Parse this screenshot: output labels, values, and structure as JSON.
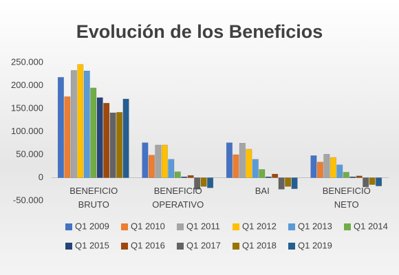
{
  "chart_data": {
    "type": "bar",
    "title": "Evolución de los Beneficios",
    "categories": [
      "BENEFICIO BRUTO",
      "BENEFICIO OPERATIVO",
      "BAI",
      "BENEFICIO NETO"
    ],
    "series": [
      {
        "name": "Q1 2009",
        "color": "#4472c4",
        "values": [
          218000,
          76000,
          76000,
          48000
        ]
      },
      {
        "name": "Q1 2010",
        "color": "#ed7d31",
        "values": [
          176000,
          49000,
          50000,
          34000
        ]
      },
      {
        "name": "Q1 2011",
        "color": "#a5a5a5",
        "values": [
          233000,
          71000,
          75000,
          51000
        ]
      },
      {
        "name": "Q1 2012",
        "color": "#ffc000",
        "values": [
          246000,
          71000,
          62000,
          44000
        ]
      },
      {
        "name": "Q1 2013",
        "color": "#5b9bd5",
        "values": [
          232000,
          40000,
          40000,
          28000
        ]
      },
      {
        "name": "Q1 2014",
        "color": "#70ad47",
        "values": [
          195000,
          13000,
          18000,
          12000
        ]
      },
      {
        "name": "Q1 2015",
        "color": "#264478",
        "values": [
          174000,
          2000,
          2000,
          2000
        ]
      },
      {
        "name": "Q1 2016",
        "color": "#9e480e",
        "values": [
          162000,
          5000,
          8000,
          4000
        ]
      },
      {
        "name": "Q1 2017",
        "color": "#636363",
        "values": [
          141000,
          -25000,
          -25000,
          -20000
        ]
      },
      {
        "name": "Q1 2018",
        "color": "#997300",
        "values": [
          142000,
          -19000,
          -19000,
          -15000
        ]
      },
      {
        "name": "Q1 2019",
        "color": "#255e91",
        "values": [
          171000,
          -22000,
          -24000,
          -18000
        ]
      }
    ],
    "ylim": [
      -50000,
      250000
    ],
    "yticks": [
      {
        "value": -50000,
        "label": "-50.000"
      },
      0,
      {
        "value": 50000,
        "label": "50.000"
      },
      {
        "value": 100000,
        "label": "100.000"
      },
      {
        "value": 150000,
        "label": "150.000"
      },
      {
        "value": 200000,
        "label": "200.000"
      },
      {
        "value": 250000,
        "label": "250.000"
      }
    ]
  }
}
